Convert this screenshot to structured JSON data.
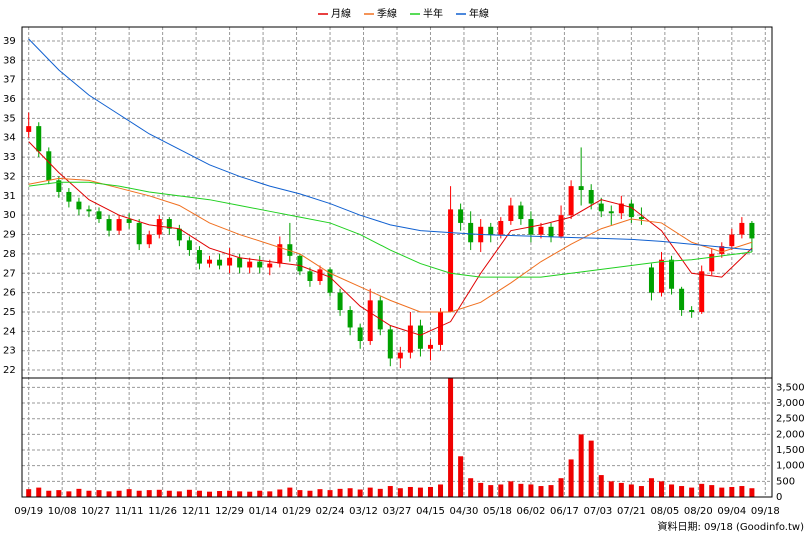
{
  "chart_data": {
    "type": "candlestick",
    "source": "資料日期: 09/18 (Goodinfo.tw)",
    "x": [
      0,
      3,
      6,
      9,
      12,
      15,
      18,
      21,
      24,
      27,
      30,
      33,
      36,
      39,
      42,
      45,
      48,
      51,
      54,
      57,
      60,
      63,
      66,
      69,
      72,
      75,
      78,
      81,
      84,
      87,
      90,
      93,
      96,
      99,
      102,
      105,
      108,
      111,
      114,
      117,
      120,
      123,
      126,
      129,
      132,
      135,
      138,
      141,
      144,
      147,
      150,
      153,
      156,
      159,
      162,
      165,
      168,
      171,
      174,
      177,
      180,
      183,
      186,
      189,
      192,
      195,
      198,
      201,
      204,
      207,
      210,
      213,
      216
    ],
    "open": [
      34.3,
      34.6,
      33.3,
      31.8,
      31.2,
      30.7,
      30.3,
      30.2,
      29.8,
      29.2,
      29.8,
      29.6,
      28.5,
      29.0,
      29.8,
      29.3,
      28.7,
      28.2,
      27.5,
      27.7,
      27.4,
      27.8,
      27.3,
      27.6,
      27.3,
      27.5,
      28.5,
      27.9,
      27.1,
      26.6,
      27.2,
      26.0,
      25.1,
      24.2,
      23.5,
      25.6,
      24.1,
      22.6,
      22.9,
      24.3,
      23.1,
      23.3,
      25.0,
      30.3,
      29.6,
      28.6,
      29.4,
      29.0,
      29.7,
      30.5,
      29.8,
      29.0,
      29.4,
      28.9,
      30.0,
      31.5,
      31.3,
      30.6,
      30.2,
      30.1,
      30.6,
      29.9,
      27.3,
      26.0,
      27.7,
      26.2,
      25.1,
      25.0,
      27.1,
      28.0,
      28.4,
      29.0,
      29.6
    ],
    "high": [
      35.3,
      34.8,
      33.5,
      32.0,
      31.4,
      30.9,
      30.5,
      30.4,
      30.0,
      30.0,
      30.1,
      29.8,
      29.2,
      30.0,
      29.9,
      29.5,
      28.9,
      28.4,
      27.9,
      28.0,
      28.3,
      28.0,
      27.8,
      27.9,
      27.7,
      28.9,
      29.6,
      28.0,
      27.3,
      27.4,
      27.3,
      26.2,
      25.3,
      24.4,
      26.2,
      25.8,
      24.3,
      23.2,
      25.0,
      24.6,
      23.6,
      25.2,
      31.5,
      30.6,
      30.2,
      29.8,
      29.6,
      29.9,
      30.9,
      30.7,
      30.2,
      29.6,
      29.6,
      30.5,
      31.8,
      33.5,
      31.6,
      30.9,
      30.5,
      31.0,
      30.8,
      30.4,
      27.5,
      28.1,
      27.9,
      26.3,
      25.3,
      27.4,
      28.3,
      28.6,
      29.3,
      29.9,
      29.7
    ],
    "low": [
      34.0,
      33.0,
      31.6,
      30.9,
      30.4,
      30.0,
      29.9,
      29.6,
      28.9,
      29.0,
      29.3,
      28.2,
      28.3,
      28.8,
      29.0,
      28.4,
      27.9,
      27.2,
      27.3,
      27.2,
      27.0,
      27.0,
      27.0,
      27.0,
      26.9,
      27.3,
      27.6,
      26.9,
      26.3,
      26.4,
      25.8,
      24.8,
      23.8,
      23.1,
      23.3,
      23.8,
      22.2,
      22.1,
      22.6,
      22.7,
      22.5,
      23.0,
      25.0,
      29.2,
      28.2,
      28.1,
      28.6,
      28.8,
      29.5,
      29.5,
      28.6,
      28.8,
      28.6,
      28.8,
      29.8,
      30.5,
      30.3,
      29.9,
      29.5,
      29.8,
      29.6,
      29.5,
      25.6,
      25.8,
      25.9,
      24.8,
      24.7,
      24.9,
      26.9,
      27.8,
      28.2,
      28.8,
      28.1
    ],
    "close": [
      34.6,
      33.3,
      31.8,
      31.2,
      30.7,
      30.3,
      30.2,
      29.8,
      29.2,
      29.8,
      29.6,
      28.5,
      29.0,
      29.8,
      29.3,
      28.7,
      28.2,
      27.5,
      27.7,
      27.4,
      27.8,
      27.3,
      27.6,
      27.3,
      27.5,
      28.5,
      27.9,
      27.1,
      26.6,
      27.2,
      26.0,
      25.1,
      24.2,
      23.5,
      25.6,
      24.1,
      22.6,
      22.9,
      24.3,
      23.1,
      23.3,
      25.0,
      30.3,
      29.6,
      28.6,
      29.4,
      29.0,
      29.7,
      30.5,
      29.8,
      29.0,
      29.4,
      28.9,
      30.0,
      31.5,
      31.3,
      30.6,
      30.2,
      30.1,
      30.6,
      29.9,
      29.8,
      26.0,
      27.7,
      26.2,
      25.1,
      25.0,
      27.1,
      28.0,
      28.4,
      29.0,
      29.6,
      28.8
    ],
    "up_color": "#ff0000",
    "down_color": "#00a000",
    "xlim": [
      -2,
      222
    ],
    "xticks": [
      {
        "value": 0,
        "label": "09/19"
      },
      {
        "value": 10,
        "label": "10/08"
      },
      {
        "value": 20,
        "label": "10/27"
      },
      {
        "value": 30,
        "label": "11/11"
      },
      {
        "value": 40,
        "label": "11/26"
      },
      {
        "value": 50,
        "label": "12/11"
      },
      {
        "value": 60,
        "label": "12/29"
      },
      {
        "value": 70,
        "label": "01/14"
      },
      {
        "value": 80,
        "label": "01/29"
      },
      {
        "value": 90,
        "label": "02/24"
      },
      {
        "value": 100,
        "label": "03/12"
      },
      {
        "value": 110,
        "label": "03/27"
      },
      {
        "value": 120,
        "label": "04/15"
      },
      {
        "value": 130,
        "label": "04/30"
      },
      {
        "value": 140,
        "label": "05/18"
      },
      {
        "value": 150,
        "label": "06/02"
      },
      {
        "value": 160,
        "label": "06/17"
      },
      {
        "value": 170,
        "label": "07/03"
      },
      {
        "value": 180,
        "label": "07/21"
      },
      {
        "value": 190,
        "label": "08/05"
      },
      {
        "value": 200,
        "label": "08/20"
      },
      {
        "value": 210,
        "label": "09/04"
      },
      {
        "value": 220,
        "label": "09/18"
      }
    ],
    "ylim": [
      21.59,
      39.72
    ],
    "yticks": [
      22,
      23,
      24,
      25,
      26,
      27,
      28,
      29,
      30,
      31,
      32,
      33,
      34,
      35,
      36,
      37,
      38,
      39
    ],
    "grid": true,
    "legend": "top",
    "series": [
      {
        "name": "月線",
        "color": "#e00000",
        "x": [
          0,
          9,
          18,
          27,
          36,
          45,
          54,
          63,
          72,
          81,
          90,
          99,
          108,
          117,
          126,
          135,
          144,
          153,
          162,
          171,
          180,
          189,
          198,
          207,
          216
        ],
        "values": [
          33.8,
          32.2,
          30.8,
          30.0,
          29.5,
          29.3,
          28.3,
          27.8,
          27.6,
          27.4,
          26.8,
          25.3,
          24.3,
          23.8,
          24.5,
          27.0,
          29.2,
          29.5,
          29.9,
          30.8,
          30.4,
          29.2,
          27.0,
          26.8,
          28.3
        ]
      },
      {
        "name": "季線",
        "color": "#f07020",
        "x": [
          0,
          9,
          18,
          27,
          36,
          45,
          54,
          63,
          72,
          81,
          90,
          99,
          108,
          117,
          126,
          135,
          144,
          153,
          162,
          171,
          180,
          189,
          198,
          207,
          216
        ],
        "values": [
          31.6,
          31.9,
          31.8,
          31.4,
          31.0,
          30.5,
          29.6,
          29.0,
          28.5,
          28.0,
          27.0,
          26.3,
          25.6,
          25.0,
          25.0,
          25.5,
          26.5,
          27.6,
          28.5,
          29.3,
          29.8,
          29.6,
          28.6,
          28.1,
          28.6
        ]
      },
      {
        "name": "半年",
        "color": "#20d020",
        "x": [
          0,
          9,
          18,
          27,
          36,
          45,
          54,
          63,
          72,
          81,
          90,
          99,
          108,
          117,
          126,
          135,
          144,
          153,
          162,
          171,
          180,
          189,
          198,
          207,
          216
        ],
        "values": [
          31.5,
          31.7,
          31.7,
          31.5,
          31.2,
          31.0,
          30.8,
          30.5,
          30.2,
          29.9,
          29.6,
          29.0,
          28.2,
          27.5,
          27.0,
          26.8,
          26.8,
          26.8,
          27.0,
          27.2,
          27.4,
          27.6,
          27.7,
          27.9,
          28.1
        ]
      },
      {
        "name": "年線",
        "color": "#1060d0",
        "x": [
          0,
          9,
          18,
          27,
          36,
          45,
          54,
          63,
          72,
          81,
          90,
          99,
          108,
          117,
          126,
          135,
          144,
          153,
          162,
          171,
          180,
          189,
          198,
          207,
          216
        ],
        "values": [
          39.1,
          37.5,
          36.2,
          35.2,
          34.2,
          33.4,
          32.6,
          32.0,
          31.5,
          31.1,
          30.6,
          30.0,
          29.5,
          29.2,
          29.1,
          29.0,
          28.95,
          28.9,
          28.85,
          28.8,
          28.75,
          28.65,
          28.5,
          28.35,
          28.2
        ]
      }
    ],
    "volume": {
      "color": "#ee0000",
      "ylim": [
        0,
        3800
      ],
      "yticks": [
        0,
        500,
        {
          "value": 1000,
          "label": "1,000"
        },
        {
          "value": 1500,
          "label": "1,500"
        },
        {
          "value": 2000,
          "label": "2,000"
        },
        {
          "value": 2500,
          "label": "2,500"
        },
        {
          "value": 3000,
          "label": "3,000"
        },
        {
          "value": 3500,
          "label": "3,500"
        }
      ],
      "values": [
        250,
        300,
        200,
        220,
        180,
        260,
        200,
        220,
        180,
        200,
        250,
        200,
        220,
        230,
        200,
        180,
        230,
        200,
        170,
        190,
        200,
        180,
        170,
        200,
        180,
        240,
        300,
        220,
        200,
        250,
        220,
        260,
        280,
        240,
        300,
        260,
        350,
        280,
        320,
        300,
        320,
        400,
        3800,
        1300,
        600,
        450,
        380,
        400,
        500,
        420,
        400,
        350,
        380,
        600,
        1200,
        2000,
        1800,
        700,
        500,
        450,
        400,
        350,
        600,
        500,
        400,
        350,
        300,
        420,
        380,
        300,
        320,
        350,
        280
      ]
    }
  }
}
